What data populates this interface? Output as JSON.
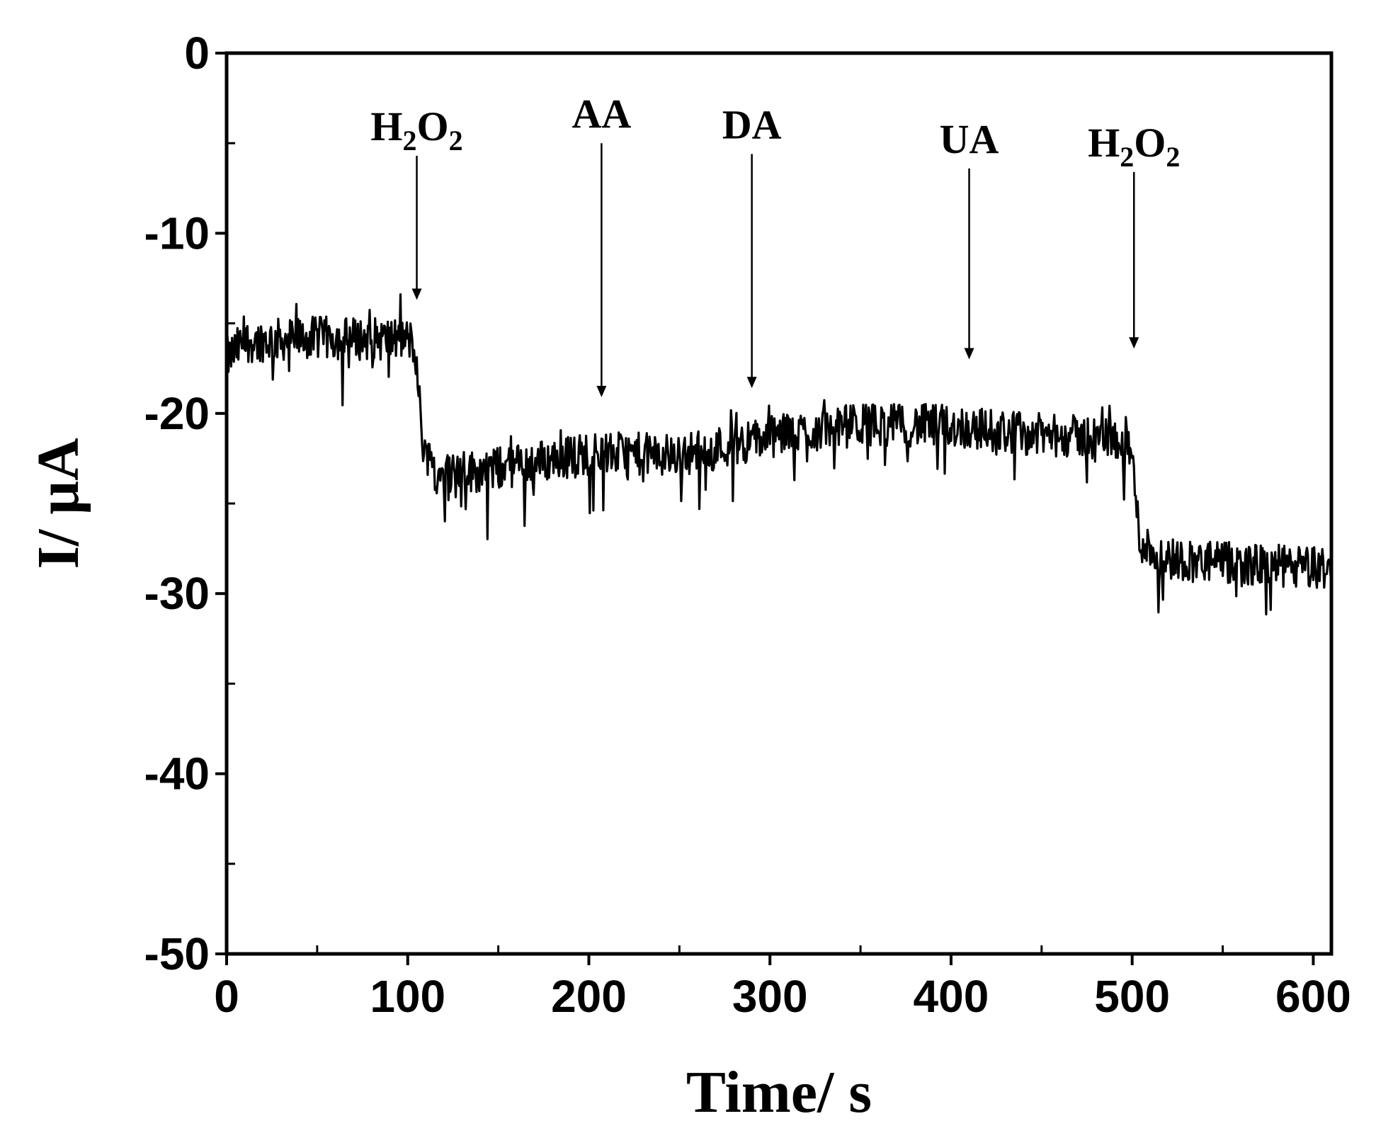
{
  "chart_data": {
    "type": "line",
    "xlabel": "Time/ s",
    "ylabel": "I/ μA",
    "xlim": [
      0,
      610
    ],
    "ylim": [
      -50,
      0
    ],
    "x_ticks": [
      0,
      100,
      200,
      300,
      400,
      500,
      600
    ],
    "x_tick_labels": [
      "0",
      "100",
      "200",
      "300",
      "400",
      "500",
      "600"
    ],
    "y_ticks": [
      0,
      -10,
      -20,
      -30,
      -40,
      -50
    ],
    "y_tick_labels": [
      "0",
      "-10",
      "-20",
      "-30",
      "-40",
      "-50"
    ],
    "x_minor_step": 50,
    "y_minor_step": 5,
    "grid": false,
    "line_color": "#000000",
    "noise_amplitude": 1.2,
    "series": [
      {
        "baseline": [
          {
            "x": 0,
            "y": -17.0
          },
          {
            "x": 10,
            "y": -16.0
          },
          {
            "x": 50,
            "y": -15.8
          },
          {
            "x": 100,
            "y": -15.9
          },
          {
            "x": 104,
            "y": -16.2
          },
          {
            "x": 108,
            "y": -21.5
          },
          {
            "x": 115,
            "y": -23.3
          },
          {
            "x": 140,
            "y": -23.2
          },
          {
            "x": 200,
            "y": -22.2
          },
          {
            "x": 250,
            "y": -22.3
          },
          {
            "x": 300,
            "y": -21.3
          },
          {
            "x": 350,
            "y": -20.6
          },
          {
            "x": 400,
            "y": -20.7
          },
          {
            "x": 450,
            "y": -21.2
          },
          {
            "x": 497,
            "y": -21.4
          },
          {
            "x": 500,
            "y": -22.5
          },
          {
            "x": 504,
            "y": -27.0
          },
          {
            "x": 515,
            "y": -28.0
          },
          {
            "x": 560,
            "y": -28.4
          },
          {
            "x": 610,
            "y": -28.6
          }
        ]
      }
    ],
    "annotations": [
      {
        "label": "H",
        "sub1": "2",
        "mid": "O",
        "sub2": "2",
        "x": 105,
        "y_start": -5.7,
        "y_end": -13.7
      },
      {
        "label": "AA",
        "x": 207,
        "y_start": -5.0,
        "y_end": -19.1
      },
      {
        "label": "DA",
        "x": 290,
        "y_start": -5.6,
        "y_end": -18.6
      },
      {
        "label": "UA",
        "x": 410,
        "y_start": -6.4,
        "y_end": -17.0
      },
      {
        "label": "H",
        "sub1": "2",
        "mid": "O",
        "sub2": "2",
        "x": 501,
        "y_start": -6.6,
        "y_end": -16.4
      }
    ]
  }
}
